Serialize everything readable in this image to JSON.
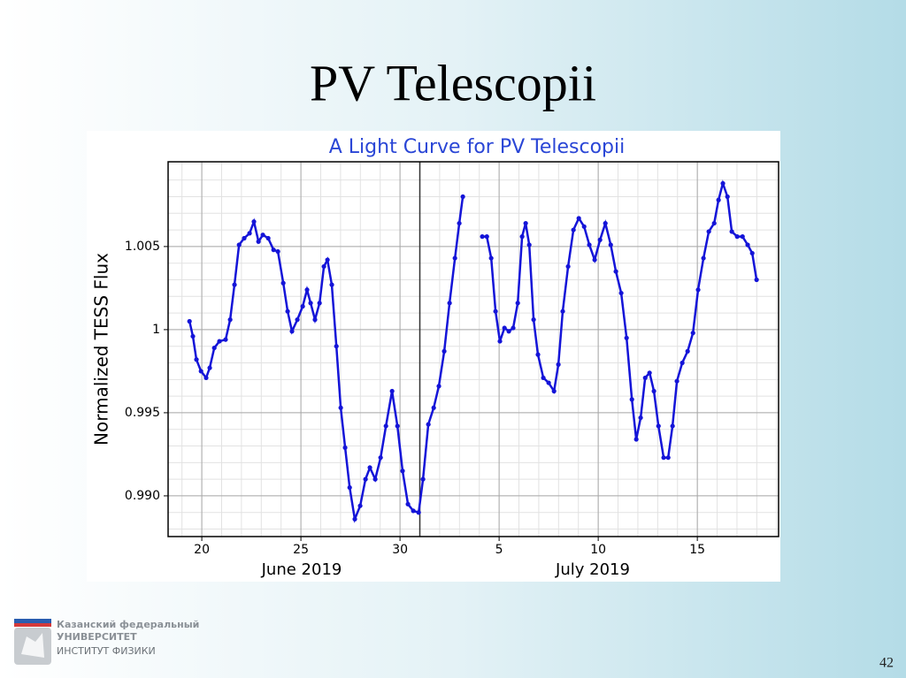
{
  "slide": {
    "title": "PV Telescopii",
    "logo_lines": [
      "Казанский федеральный",
      "УНИВЕРСИТЕТ",
      "ИНСТИТУТ ФИЗИКИ"
    ],
    "page_number": "42"
  },
  "chart_data": {
    "type": "line",
    "marker": "dot",
    "title": "A Light Curve for PV Telescopii",
    "y_label": "Normalized TESS Flux",
    "annotations": [
      "June 2019",
      "July 2019"
    ],
    "color": "#1414d8",
    "grid": true,
    "minor_grid": true,
    "vlines": [
      31
    ],
    "xlim": [
      18.3,
      49.1
    ],
    "ylim": [
      0.98755,
      1.0101
    ],
    "xticks": [
      20,
      25,
      30,
      {
        "value": 35,
        "label": "5"
      },
      {
        "value": 40,
        "label": "10"
      },
      {
        "value": 45,
        "label": "15"
      }
    ],
    "yticks": [
      {
        "value": 0.99,
        "label": "0.990"
      },
      0.995,
      1,
      1.005
    ],
    "x": [
      19.38,
      19.55,
      19.73,
      19.96,
      20.22,
      20.4,
      20.63,
      20.89,
      21.2,
      21.43,
      21.65,
      21.88,
      22.14,
      22.41,
      22.63,
      22.86,
      23.08,
      23.35,
      23.62,
      23.84,
      24.11,
      24.33,
      24.55,
      24.82,
      25.09,
      25.31,
      25.49,
      25.71,
      25.94,
      26.16,
      26.34,
      26.56,
      26.79,
      27.01,
      27.23,
      27.46,
      27.72,
      27.99,
      28.26,
      28.48,
      28.75,
      29.02,
      29.29,
      29.6,
      29.87,
      30.13,
      30.4,
      30.67,
      30.94,
      31.16,
      31.43,
      31.7,
      31.96,
      32.23,
      32.5,
      32.77,
      32.99,
      33.17,
      33.66,
      34.15,
      34.38,
      34.6,
      34.82,
      35.04,
      35.27,
      35.49,
      35.71,
      35.94,
      36.16,
      36.34,
      36.52,
      36.74,
      36.96,
      37.23,
      37.5,
      37.77,
      37.99,
      38.21,
      38.48,
      38.75,
      39.02,
      39.29,
      39.55,
      39.82,
      40.09,
      40.36,
      40.63,
      40.89,
      41.16,
      41.43,
      41.7,
      41.92,
      42.14,
      42.37,
      42.59,
      42.81,
      43.04,
      43.3,
      43.53,
      43.75,
      43.97,
      44.24,
      44.51,
      44.78,
      45.04,
      45.31,
      45.58,
      45.85,
      46.07,
      46.29,
      46.52,
      46.74,
      47.01,
      47.28,
      47.54,
      47.77,
      47.99
    ],
    "values": [
      1.0005,
      0.9996,
      0.9982,
      0.9975,
      0.9971,
      0.9977,
      0.9989,
      0.9993,
      0.9994,
      1.0006,
      1.0027,
      1.0051,
      1.0055,
      1.0058,
      1.0065,
      1.0053,
      1.0057,
      1.0055,
      1.0048,
      1.0047,
      1.0028,
      1.0011,
      0.9999,
      1.0006,
      1.0014,
      1.0024,
      1.0016,
      1.0006,
      1.0016,
      1.0038,
      1.0042,
      1.0027,
      0.999,
      0.9953,
      0.9929,
      0.9905,
      0.9886,
      0.9894,
      0.991,
      0.9917,
      0.991,
      0.9923,
      0.9942,
      0.9963,
      0.9942,
      0.9915,
      0.9895,
      0.9891,
      0.989,
      0.991,
      0.9943,
      0.9953,
      0.9966,
      0.9987,
      1.0016,
      1.0043,
      1.0064,
      1.008,
      null,
      1.0056,
      1.0056,
      1.0043,
      1.0011,
      0.9993,
      1.0001,
      0.9999,
      1.0001,
      1.0016,
      1.0056,
      1.0064,
      1.0051,
      1.0006,
      0.9985,
      0.9971,
      0.9968,
      0.9963,
      0.9979,
      1.0011,
      1.0038,
      1.006,
      1.0067,
      1.0062,
      1.0051,
      1.0042,
      1.0054,
      1.0064,
      1.0051,
      1.0035,
      1.0022,
      0.9995,
      0.9958,
      0.9934,
      0.9947,
      0.9971,
      0.9974,
      0.9963,
      0.9942,
      0.9923,
      0.9923,
      0.9942,
      0.9969,
      0.998,
      0.9987,
      0.9998,
      1.0024,
      1.0043,
      1.0059,
      1.0064,
      1.0078,
      1.0088,
      1.008,
      1.0059,
      1.0056,
      1.0056,
      1.0051,
      1.0046,
      1.003
    ]
  }
}
